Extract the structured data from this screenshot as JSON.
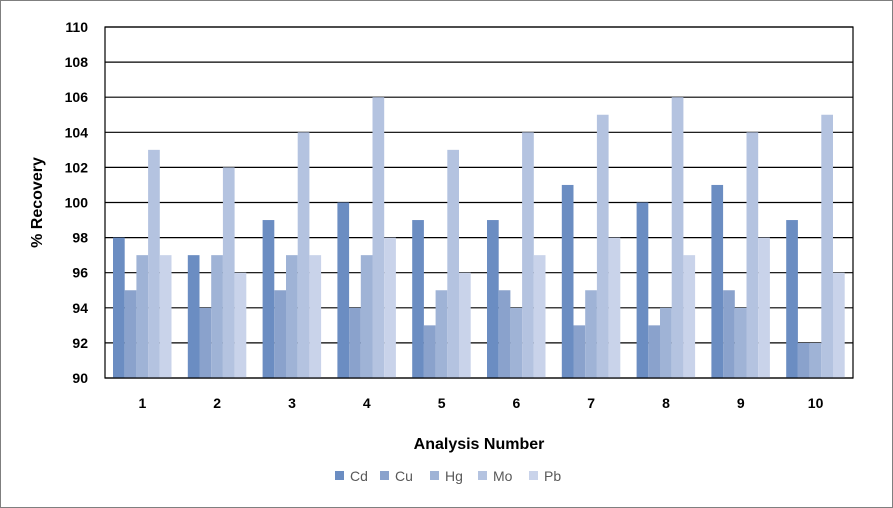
{
  "chart_data": {
    "type": "bar",
    "title": "",
    "xlabel": "Analysis Number",
    "ylabel": "% Recovery",
    "ylim": [
      90,
      110
    ],
    "yticks": [
      "90",
      "92",
      "94",
      "96",
      "98",
      "100",
      "102",
      "104",
      "106",
      "108",
      "110"
    ],
    "categories": [
      "1",
      "2",
      "3",
      "4",
      "5",
      "6",
      "7",
      "8",
      "9",
      "10"
    ],
    "grid": true,
    "legend_position": "bottom",
    "series": [
      {
        "name": "Cd",
        "color": "#6b8dc2",
        "values": [
          98,
          97,
          99,
          100,
          99,
          99,
          101,
          100,
          101,
          99
        ]
      },
      {
        "name": "Cu",
        "color": "#8aa2cc",
        "values": [
          95,
          94,
          95,
          94,
          93,
          95,
          93,
          93,
          95,
          92
        ]
      },
      {
        "name": "Hg",
        "color": "#9fb3d6",
        "values": [
          97,
          97,
          97,
          97,
          95,
          94,
          95,
          94,
          94,
          92
        ]
      },
      {
        "name": "Mo",
        "color": "#b4c3e0",
        "values": [
          103,
          102,
          104,
          106,
          103,
          104,
          105,
          106,
          104,
          105
        ]
      },
      {
        "name": "Pb",
        "color": "#c9d3ea",
        "values": [
          97,
          96,
          97,
          98,
          96,
          97,
          98,
          97,
          98,
          96
        ]
      }
    ]
  }
}
